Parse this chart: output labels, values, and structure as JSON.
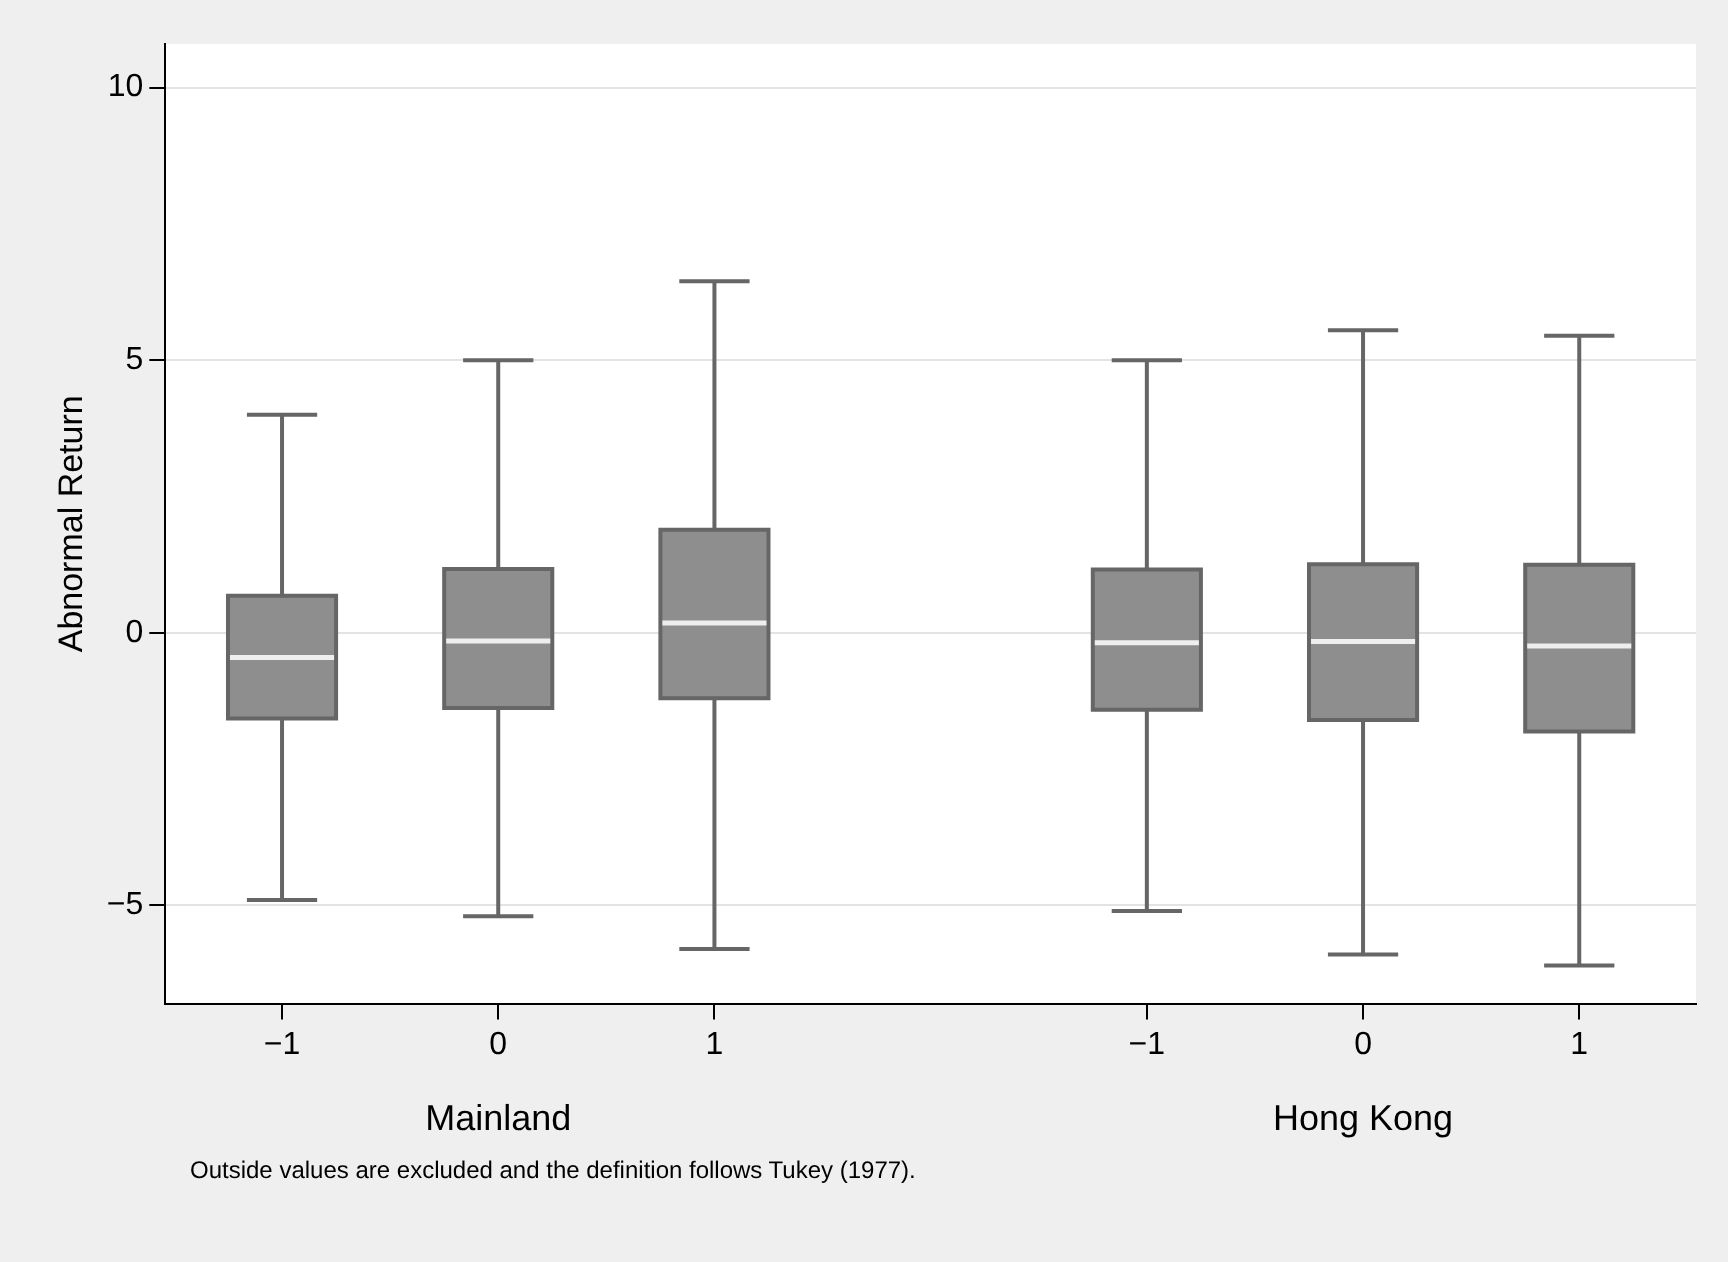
{
  "chart_data": {
    "type": "box",
    "ylabel": "Abnormal Return",
    "categories": [
      "−1",
      "0",
      "1",
      null,
      "−1",
      "0",
      "1"
    ],
    "series": [
      {
        "color": "#8e8e8e",
        "boxes": [
          {
            "low": -4.9,
            "q1": -1.57,
            "median": -0.45,
            "q3": 0.68,
            "high": 4.0
          },
          {
            "low": -5.2,
            "q1": -1.38,
            "median": -0.15,
            "q3": 1.17,
            "high": 5.0
          },
          {
            "low": -5.8,
            "q1": -1.2,
            "median": 0.18,
            "q3": 1.89,
            "high": 6.45
          },
          null,
          {
            "low": -5.1,
            "q1": -1.41,
            "median": -0.18,
            "q3": 1.16,
            "high": 5.0
          },
          {
            "low": -5.9,
            "q1": -1.6,
            "median": -0.16,
            "q3": 1.26,
            "high": 5.55
          },
          {
            "low": -6.1,
            "q1": -1.81,
            "median": -0.24,
            "q3": 1.25,
            "high": 5.45
          }
        ]
      }
    ],
    "ylim": [
      -6.8,
      10.8
    ],
    "yticks": [
      {
        "value": -5,
        "label": "−5"
      },
      0,
      5,
      10
    ],
    "grid": "y",
    "annotations": [
      "Mainland",
      "Hong Kong",
      "Outside values are excluded and the definition follows Tukey (1977)."
    ]
  }
}
